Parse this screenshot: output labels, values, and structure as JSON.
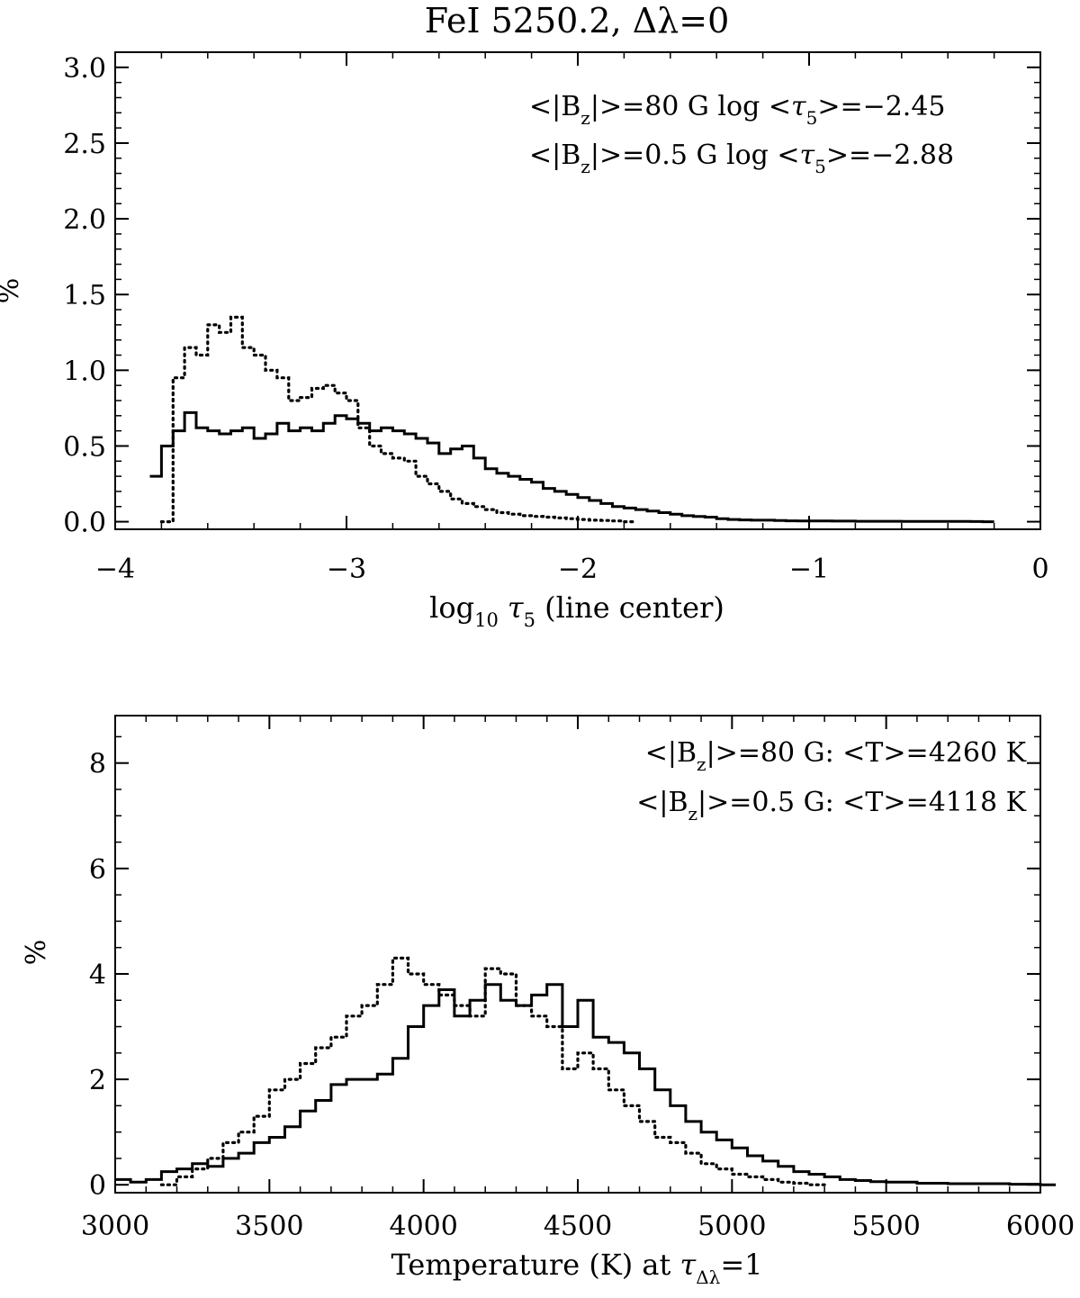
{
  "figure_title": "FeI 5250.2,  Δλ=0",
  "chart_data": [
    {
      "type": "line",
      "style": "histogram",
      "xlabel_main": "log",
      "xlabel_sub1": "10",
      "xlabel_tau": "τ",
      "xlabel_sub2": "5",
      "xlabel_rest": " (line center)",
      "ylabel": "%",
      "xlim": [
        -4,
        0
      ],
      "ylim": [
        -0.05,
        3.1
      ],
      "xticks": [
        -4,
        -3,
        -2,
        -1,
        0
      ],
      "xtick_labels": [
        "−4",
        "−3",
        "−2",
        "−1",
        "0"
      ],
      "yticks": [
        0.0,
        0.5,
        1.0,
        1.5,
        2.0,
        2.5,
        3.0
      ],
      "ytick_labels": [
        "0.0",
        "0.5",
        "1.0",
        "1.5",
        "2.0",
        "2.5",
        "3.0"
      ],
      "grid": false,
      "annotations": [
        {
          "a": "<|B",
          "sub": "z",
          "b": "|>=80 G log <",
          "tau": "τ",
          "tsub": "5",
          "c": ">=−2.45"
        },
        {
          "a": "<|B",
          "sub": "z",
          "b": "|>=0.5 G log <",
          "tau": "τ",
          "tsub": "5",
          "c": ">=−2.88"
        }
      ],
      "series": [
        {
          "line": "solid",
          "x": [
            -3.85,
            -3.8,
            -3.75,
            -3.7,
            -3.65,
            -3.6,
            -3.55,
            -3.5,
            -3.45,
            -3.4,
            -3.35,
            -3.3,
            -3.25,
            -3.2,
            -3.15,
            -3.1,
            -3.05,
            -3.0,
            -2.95,
            -2.9,
            -2.85,
            -2.8,
            -2.75,
            -2.7,
            -2.65,
            -2.6,
            -2.55,
            -2.5,
            -2.45,
            -2.4,
            -2.35,
            -2.3,
            -2.25,
            -2.2,
            -2.15,
            -2.1,
            -2.05,
            -2.0,
            -1.95,
            -1.9,
            -1.85,
            -1.8,
            -1.75,
            -1.7,
            -1.65,
            -1.6,
            -1.55,
            -1.5,
            -1.45,
            -1.4,
            -1.35,
            -1.3,
            -1.25,
            -1.2,
            -1.15,
            -1.1,
            -1.05,
            -1.0,
            -0.9,
            -0.8,
            -0.7,
            -0.6,
            -0.5,
            -0.4,
            -0.3,
            -0.25
          ],
          "y": [
            0.3,
            0.5,
            0.6,
            0.72,
            0.62,
            0.6,
            0.58,
            0.6,
            0.62,
            0.55,
            0.58,
            0.65,
            0.6,
            0.62,
            0.6,
            0.65,
            0.7,
            0.68,
            0.65,
            0.6,
            0.62,
            0.6,
            0.58,
            0.55,
            0.52,
            0.45,
            0.48,
            0.5,
            0.42,
            0.35,
            0.32,
            0.3,
            0.28,
            0.26,
            0.22,
            0.2,
            0.18,
            0.16,
            0.14,
            0.12,
            0.1,
            0.09,
            0.08,
            0.07,
            0.06,
            0.05,
            0.04,
            0.035,
            0.03,
            0.02,
            0.015,
            0.012,
            0.01,
            0.01,
            0.008,
            0.006,
            0.005,
            0.005,
            0.004,
            0.003,
            0.003,
            0.002,
            0.002,
            0.002,
            0.001,
            0.0
          ]
        },
        {
          "line": "dotted",
          "x": [
            -3.8,
            -3.75,
            -3.7,
            -3.65,
            -3.6,
            -3.55,
            -3.5,
            -3.45,
            -3.4,
            -3.35,
            -3.3,
            -3.25,
            -3.2,
            -3.15,
            -3.1,
            -3.05,
            -3.0,
            -2.95,
            -2.9,
            -2.85,
            -2.8,
            -2.75,
            -2.7,
            -2.65,
            -2.6,
            -2.55,
            -2.5,
            -2.45,
            -2.4,
            -2.35,
            -2.3,
            -2.25,
            -2.2,
            -2.15,
            -2.1,
            -2.05,
            -2.0,
            -1.95,
            -1.9,
            -1.85,
            -1.8
          ],
          "y": [
            0.0,
            0.95,
            1.15,
            1.1,
            1.3,
            1.25,
            1.35,
            1.15,
            1.1,
            1.0,
            0.95,
            0.8,
            0.82,
            0.88,
            0.9,
            0.85,
            0.8,
            0.62,
            0.5,
            0.45,
            0.42,
            0.4,
            0.3,
            0.25,
            0.2,
            0.15,
            0.12,
            0.1,
            0.08,
            0.06,
            0.05,
            0.04,
            0.035,
            0.03,
            0.025,
            0.02,
            0.015,
            0.01,
            0.008,
            0.005,
            0.0
          ]
        }
      ]
    },
    {
      "type": "line",
      "style": "histogram",
      "xlabel_main": "Temperature (K) at ",
      "xlabel_tau": "τ",
      "xlabel_sub": "Δλ",
      "xlabel_rest": "=1",
      "ylabel": "%",
      "xlim": [
        3000,
        6000
      ],
      "ylim": [
        -0.15,
        8.9
      ],
      "xticks": [
        3000,
        3500,
        4000,
        4500,
        5000,
        5500,
        6000
      ],
      "xtick_labels": [
        "3000",
        "3500",
        "4000",
        "4500",
        "5000",
        "5500",
        "6000"
      ],
      "yticks": [
        0,
        2,
        4,
        6,
        8
      ],
      "ytick_labels": [
        "0",
        "2",
        "4",
        "6",
        "8"
      ],
      "grid": false,
      "annotations": [
        {
          "a": "<|B",
          "sub": "z",
          "b": "|>=80 G:  <T>=4260 K"
        },
        {
          "a": "<|B",
          "sub": "z",
          "b": "|>=0.5 G:  <T>=4118 K"
        }
      ],
      "series": [
        {
          "line": "solid",
          "x": [
            3000,
            3050,
            3100,
            3150,
            3200,
            3250,
            3300,
            3350,
            3400,
            3450,
            3500,
            3550,
            3600,
            3650,
            3700,
            3750,
            3800,
            3850,
            3900,
            3950,
            4000,
            4050,
            4100,
            4150,
            4200,
            4250,
            4300,
            4350,
            4400,
            4450,
            4500,
            4550,
            4600,
            4650,
            4700,
            4750,
            4800,
            4850,
            4900,
            4950,
            5000,
            5050,
            5100,
            5150,
            5200,
            5250,
            5300,
            5350,
            5400,
            5450,
            5500,
            5600,
            5700,
            5800,
            5900,
            6000
          ],
          "y": [
            0.1,
            0.05,
            0.1,
            0.25,
            0.3,
            0.4,
            0.35,
            0.5,
            0.6,
            0.8,
            0.9,
            1.1,
            1.4,
            1.6,
            1.9,
            2.0,
            2.0,
            2.1,
            2.4,
            3.0,
            3.4,
            3.7,
            3.2,
            3.5,
            3.8,
            3.5,
            3.4,
            3.6,
            3.8,
            3.0,
            3.5,
            2.8,
            2.7,
            2.5,
            2.2,
            1.8,
            1.5,
            1.2,
            1.0,
            0.85,
            0.7,
            0.55,
            0.45,
            0.35,
            0.25,
            0.2,
            0.15,
            0.1,
            0.08,
            0.06,
            0.05,
            0.03,
            0.02,
            0.02,
            0.01,
            0.0
          ]
        },
        {
          "line": "dotted",
          "x": [
            3150,
            3200,
            3250,
            3300,
            3350,
            3400,
            3450,
            3500,
            3550,
            3600,
            3650,
            3700,
            3750,
            3800,
            3850,
            3900,
            3950,
            4000,
            4050,
            4100,
            4150,
            4200,
            4250,
            4300,
            4350,
            4400,
            4450,
            4500,
            4550,
            4600,
            4650,
            4700,
            4750,
            4800,
            4850,
            4900,
            4950,
            5000,
            5050,
            5100,
            5150,
            5200,
            5250
          ],
          "y": [
            0.0,
            0.15,
            0.3,
            0.5,
            0.8,
            1.0,
            1.3,
            1.8,
            2.0,
            2.3,
            2.6,
            2.8,
            3.2,
            3.4,
            3.8,
            4.3,
            4.0,
            3.8,
            3.6,
            3.4,
            3.2,
            4.1,
            4.0,
            3.4,
            3.2,
            3.0,
            2.2,
            2.5,
            2.2,
            1.8,
            1.5,
            1.2,
            0.9,
            0.8,
            0.6,
            0.4,
            0.3,
            0.2,
            0.15,
            0.1,
            0.05,
            0.03,
            0.0
          ]
        }
      ]
    }
  ]
}
